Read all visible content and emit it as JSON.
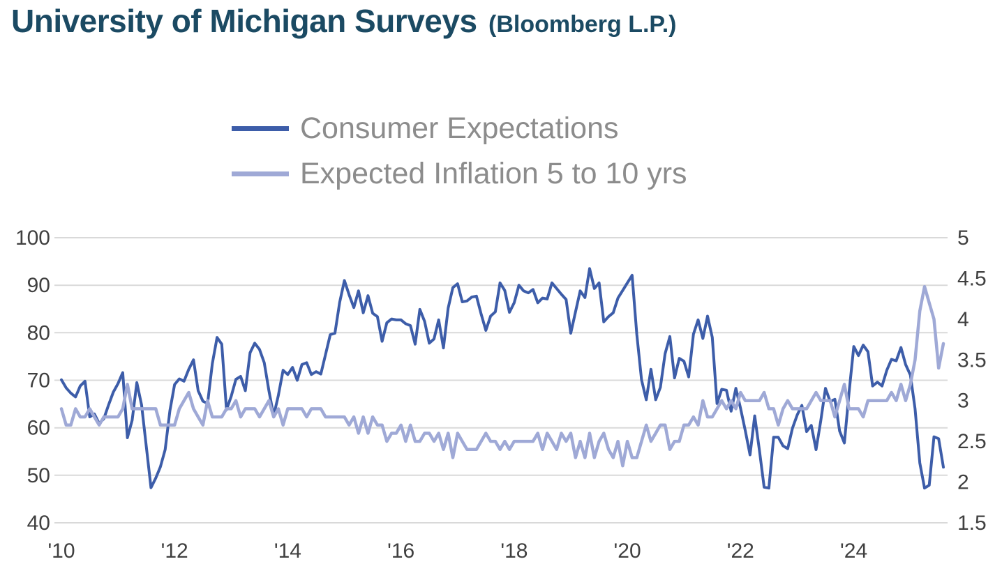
{
  "header": {
    "title": "University of Michigan Surveys",
    "source": "(Bloomberg L.P.)"
  },
  "colors": {
    "title": "#1B4A63",
    "legend_text": "#8C8C8C",
    "axis_text": "#404040",
    "gridline": "#D9D9D9",
    "background": "#FFFFFF",
    "consumer_expectations_line": "#3D5DA9",
    "expected_inflation_line": "#9FA9D6"
  },
  "chart_data": {
    "type": "line",
    "title": "University of Michigan Surveys (Bloomberg L.P.)",
    "x_unit": "month",
    "x_start": "2010-01",
    "x_end": "2025-08",
    "x_tick_labels": [
      "'10",
      "'12",
      "'14",
      "'16",
      "'18",
      "'20",
      "'22",
      "'24"
    ],
    "x_tick_interval_months": 24,
    "left_axis": {
      "min": 40,
      "max": 100,
      "ticks": [
        100,
        90,
        80,
        70,
        60,
        50,
        40
      ]
    },
    "right_axis": {
      "min": 1.5,
      "max": 5,
      "ticks": [
        5,
        4.5,
        4,
        3.5,
        3,
        2.5,
        2,
        1.5
      ]
    },
    "grid": "horizontal",
    "legend_position": "top-center",
    "series": [
      {
        "name": "Consumer Expectations",
        "axis": "left",
        "color": "#3D5DA9",
        "values": [
          70.1,
          68.4,
          67.3,
          66.5,
          68.8,
          69.8,
          62.3,
          62.9,
          60.9,
          61.9,
          64.8,
          67.5,
          69.3,
          71.6,
          57.9,
          61.6,
          69.5,
          64.8,
          56.0,
          47.4,
          49.4,
          51.8,
          55.4,
          63.6,
          69.1,
          70.3,
          69.8,
          72.3,
          74.3,
          67.8,
          65.6,
          65.1,
          73.5,
          79.0,
          77.6,
          63.8,
          66.6,
          70.2,
          70.8,
          67.8,
          75.8,
          77.8,
          76.5,
          73.7,
          67.8,
          62.5,
          66.8,
          72.1,
          71.2,
          72.7,
          70.0,
          73.3,
          73.7,
          71.2,
          71.8,
          71.3,
          75.4,
          79.6,
          79.9,
          86.4,
          91.0,
          88.0,
          85.3,
          88.8,
          84.2,
          87.8,
          84.1,
          83.4,
          78.2,
          82.1,
          82.9,
          82.7,
          82.7,
          81.9,
          81.5,
          77.6,
          84.9,
          82.4,
          77.8,
          78.7,
          82.7,
          76.8,
          85.2,
          89.5,
          90.3,
          86.5,
          86.7,
          87.5,
          87.7,
          83.9,
          80.5,
          83.5,
          84.4,
          90.5,
          88.9,
          84.3,
          86.3,
          90.0,
          88.8,
          88.4,
          89.1,
          86.3,
          87.3,
          87.1,
          90.5,
          89.3,
          88.1,
          87.0,
          79.9,
          84.4,
          88.8,
          87.4,
          93.5,
          89.3,
          90.5,
          82.3,
          83.4,
          84.2,
          87.3,
          88.9,
          90.5,
          92.1,
          79.7,
          70.1,
          65.9,
          72.3,
          65.9,
          68.5,
          75.6,
          79.2,
          70.5,
          74.6,
          74.0,
          70.7,
          79.7,
          82.7,
          78.8,
          83.5,
          79.0,
          65.1,
          68.1,
          67.9,
          63.5,
          68.3,
          64.1,
          59.4,
          54.3,
          62.5,
          55.2,
          47.5,
          47.3,
          58.0,
          58.0,
          56.2,
          55.6,
          59.9,
          62.7,
          64.7,
          59.2,
          60.5,
          55.4,
          61.5,
          68.3,
          65.5,
          66.0,
          59.3,
          56.8,
          67.4,
          77.1,
          75.2,
          77.4,
          76.0,
          68.8,
          69.6,
          68.8,
          72.1,
          74.4,
          74.1,
          76.9,
          73.3,
          71.1,
          64.0,
          52.6,
          47.3,
          47.9,
          58.1,
          57.7,
          51.7
        ]
      },
      {
        "name": "Expected Inflation 5 to 10 yrs",
        "axis": "right",
        "color": "#9FA9D6",
        "values": [
          2.9,
          2.7,
          2.7,
          2.9,
          2.8,
          2.8,
          2.9,
          2.8,
          2.7,
          2.8,
          2.8,
          2.8,
          2.8,
          2.9,
          3.2,
          2.9,
          2.9,
          2.9,
          2.9,
          2.9,
          2.9,
          2.7,
          2.7,
          2.7,
          2.7,
          2.9,
          3.0,
          3.1,
          2.9,
          2.8,
          2.7,
          3.0,
          2.8,
          2.8,
          2.8,
          2.9,
          2.9,
          3.0,
          2.8,
          2.9,
          2.9,
          2.9,
          2.8,
          2.9,
          3.0,
          2.8,
          2.9,
          2.7,
          2.9,
          2.9,
          2.9,
          2.9,
          2.8,
          2.9,
          2.9,
          2.9,
          2.8,
          2.8,
          2.8,
          2.8,
          2.8,
          2.7,
          2.8,
          2.6,
          2.8,
          2.6,
          2.8,
          2.7,
          2.7,
          2.5,
          2.6,
          2.6,
          2.7,
          2.5,
          2.7,
          2.5,
          2.5,
          2.6,
          2.6,
          2.5,
          2.6,
          2.4,
          2.6,
          2.3,
          2.6,
          2.5,
          2.4,
          2.4,
          2.4,
          2.5,
          2.6,
          2.5,
          2.5,
          2.4,
          2.5,
          2.4,
          2.5,
          2.5,
          2.5,
          2.5,
          2.5,
          2.6,
          2.4,
          2.6,
          2.5,
          2.4,
          2.6,
          2.5,
          2.6,
          2.3,
          2.5,
          2.3,
          2.6,
          2.3,
          2.5,
          2.6,
          2.4,
          2.3,
          2.5,
          2.2,
          2.5,
          2.3,
          2.3,
          2.5,
          2.7,
          2.5,
          2.6,
          2.7,
          2.7,
          2.4,
          2.5,
          2.5,
          2.7,
          2.7,
          2.8,
          2.7,
          3.0,
          2.8,
          2.8,
          2.9,
          3.0,
          2.9,
          3.0,
          2.9,
          3.1,
          3.0,
          3.0,
          3.0,
          3.0,
          3.1,
          2.9,
          2.9,
          2.7,
          2.9,
          3.0,
          2.9,
          2.9,
          2.9,
          2.9,
          3.0,
          3.1,
          3.0,
          3.0,
          3.0,
          2.8,
          3.0,
          3.2,
          2.9,
          2.9,
          2.9,
          2.8,
          3.0,
          3.0,
          3.0,
          3.0,
          3.0,
          3.1,
          3.0,
          3.2,
          3.0,
          3.2,
          3.5,
          4.1,
          4.4,
          4.2,
          4.0,
          3.4,
          3.7
        ]
      }
    ]
  }
}
